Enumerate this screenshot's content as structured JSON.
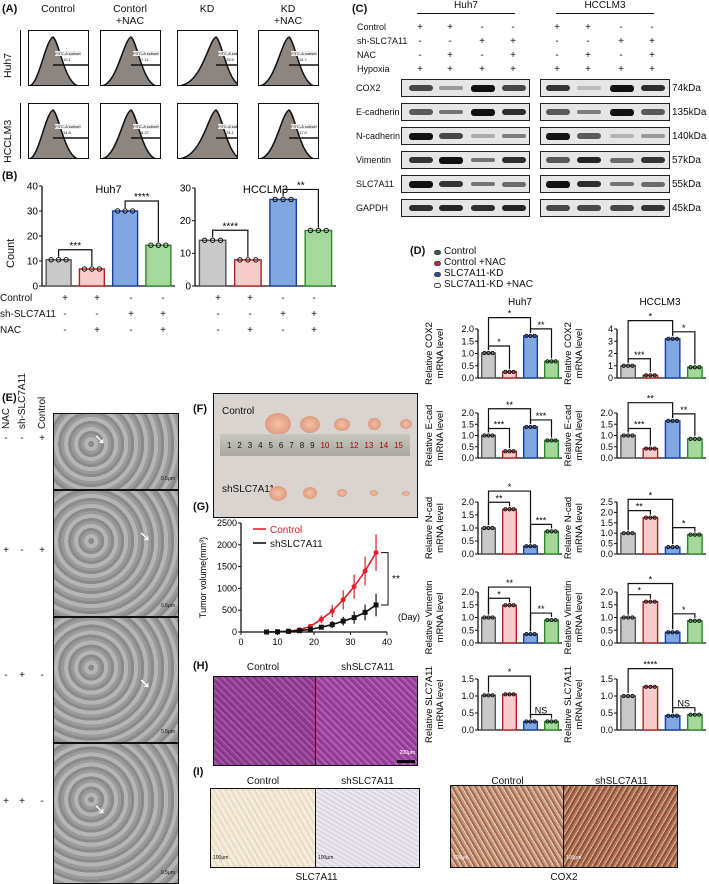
{
  "panels": {
    "A": "(A)",
    "B": "(B)",
    "C": "(C)",
    "D": "(D)",
    "E": "(E)",
    "F": "(F)",
    "G": "(G)",
    "H": "(H)",
    "I": "(I)"
  },
  "flow": {
    "columns": [
      "Control",
      "Contorl\n+NAC",
      "KD",
      "KD\n+NAC"
    ],
    "rows": [
      "Huh7",
      "HCCLM3"
    ],
    "gate_label": "FITC-A subset",
    "values": [
      [
        "10.1",
        "7.11",
        "29.5",
        "16.7"
      ],
      [
        "14.8",
        "8.27",
        "24.1",
        "17.0"
      ]
    ]
  },
  "colors": {
    "control": "#c9c9c9",
    "control_nac": "#f8cccc",
    "kd": "#7fa8e3",
    "kd_nac": "#a5d99c"
  },
  "count": {
    "ylabel": "Count",
    "charts": [
      {
        "title": "Huh7",
        "ylim": [
          0,
          40
        ],
        "ticks": [
          0,
          10,
          20,
          30,
          40
        ],
        "values": [
          10.5,
          6.8,
          30,
          16.3
        ],
        "sig": [
          {
            "pair": [
              0,
              1
            ],
            "label": "***"
          },
          {
            "pair": [
              2,
              3
            ],
            "label": "****"
          }
        ]
      },
      {
        "title": "HCCLM3",
        "ylim": [
          0,
          30
        ],
        "ticks": [
          0,
          10,
          20,
          30
        ],
        "values": [
          14,
          8,
          26.5,
          17
        ],
        "sig": [
          {
            "pair": [
              0,
              1
            ],
            "label": "****"
          },
          {
            "pair": [
              2,
              3
            ],
            "label": "**"
          }
        ]
      }
    ],
    "conditions": [
      {
        "label": "Control",
        "signs": [
          "+",
          "+",
          "-",
          "-"
        ]
      },
      {
        "label": "sh-SLC7A11",
        "signs": [
          "-",
          "-",
          "+",
          "+"
        ]
      },
      {
        "label": "NAC",
        "signs": [
          "-",
          "+",
          "-",
          "+"
        ]
      }
    ]
  },
  "western": {
    "cells": [
      "Huh7",
      "HCCLM3"
    ],
    "conditions": [
      {
        "label": "Control",
        "signs": [
          "+",
          "+",
          "-",
          "-"
        ]
      },
      {
        "label": "sh-SLC7A11",
        "signs": [
          "-",
          "-",
          "+",
          "+"
        ]
      },
      {
        "label": "NAC",
        "signs": [
          "-",
          "+",
          "-",
          "+"
        ]
      },
      {
        "label": "Hypoxia",
        "signs": [
          "+",
          "+",
          "+",
          "+"
        ]
      }
    ],
    "proteins": [
      {
        "name": "COX2",
        "kda": "74kDa",
        "huh7": [
          0.7,
          0.25,
          1,
          0.7
        ],
        "hcclm3": [
          0.8,
          0.05,
          1,
          0.85
        ]
      },
      {
        "name": "E-cadherin",
        "kda": "135kDa",
        "huh7": [
          0.6,
          0.45,
          1,
          0.85
        ],
        "hcclm3": [
          0.6,
          0.4,
          1,
          0.6
        ]
      },
      {
        "name": "N-cadherin",
        "kda": "140kDa",
        "huh7": [
          1,
          0.7,
          0.15,
          0.4
        ],
        "hcclm3": [
          1,
          0.6,
          0.1,
          0.25
        ]
      },
      {
        "name": "Vimentin",
        "kda": "57kDa",
        "huh7": [
          0.8,
          1,
          0.45,
          0.85
        ],
        "hcclm3": [
          0.6,
          0.9,
          0.5,
          0.8
        ]
      },
      {
        "name": "SLC7A11",
        "kda": "55kDa",
        "huh7": [
          1,
          0.8,
          0.45,
          0.5
        ],
        "hcclm3": [
          1,
          0.85,
          0.45,
          0.5
        ]
      },
      {
        "name": "GAPDH",
        "kda": "45kDa",
        "huh7": [
          0.85,
          0.9,
          0.85,
          0.9
        ],
        "hcclm3": [
          0.7,
          0.7,
          0.7,
          0.8
        ]
      }
    ]
  },
  "qpcr": {
    "legend": [
      "Control",
      "Control +NAC",
      "SLC7A11-KD",
      "SLC7A11-KD +NAC"
    ],
    "titles": [
      "Huh7",
      "HCCLM3"
    ],
    "genes": [
      {
        "ylabel": [
          "Relative COX2",
          "mRNA level"
        ],
        "charts": [
          {
            "ylim": [
              0,
              2
            ],
            "ticks": [
              "0.0",
              "0.5",
              "1.0",
              "1.5",
              "2.0"
            ],
            "values": [
              1.02,
              0.25,
              1.72,
              0.68
            ],
            "sig": [
              [
                "0",
                "1",
                "*"
              ],
              [
                "0",
                "2",
                "*"
              ],
              [
                "2",
                "3",
                "**"
              ]
            ]
          },
          {
            "ylim": [
              0,
              4
            ],
            "ticks": [
              "0",
              "1",
              "2",
              "3",
              "4"
            ],
            "values": [
              1.0,
              0.22,
              3.2,
              0.88
            ],
            "sig": [
              [
                "0",
                "1",
                "***"
              ],
              [
                "0",
                "2",
                "*"
              ],
              [
                "2",
                "3",
                "*"
              ]
            ]
          }
        ]
      },
      {
        "ylabel": [
          "Relative E-cad",
          "mRNA level"
        ],
        "charts": [
          {
            "ylim": [
              0,
              2
            ],
            "ticks": [
              "0.0",
              "0.5",
              "1.0",
              "1.5",
              "2.0"
            ],
            "values": [
              1.0,
              0.3,
              1.38,
              0.78
            ],
            "sig": [
              [
                "0",
                "1",
                "***"
              ],
              [
                "0",
                "2",
                "**"
              ],
              [
                "2",
                "3",
                "***"
              ]
            ]
          },
          {
            "ylim": [
              0,
              2
            ],
            "ticks": [
              "0.0",
              "0.5",
              "1.0",
              "1.5",
              "2.0"
            ],
            "values": [
              1.0,
              0.42,
              1.65,
              0.85
            ],
            "sig": [
              [
                "0",
                "1",
                "***"
              ],
              [
                "0",
                "2",
                "**"
              ],
              [
                "2",
                "3",
                "**"
              ]
            ]
          }
        ]
      },
      {
        "ylabel": [
          "Relative N-cad",
          "mRNA level"
        ],
        "charts": [
          {
            "ylim": [
              0,
              2
            ],
            "ticks": [
              "0.0",
              "0.5",
              "1.0",
              "1.5",
              "2.0"
            ],
            "values": [
              1.0,
              1.72,
              0.3,
              0.87
            ],
            "sig": [
              [
                "0",
                "1",
                "**"
              ],
              [
                "0",
                "2",
                "*"
              ],
              [
                "2",
                "3",
                "***"
              ]
            ]
          },
          {
            "ylim": [
              0,
              2.5
            ],
            "ticks": [
              "0.0",
              "0.5",
              "1.0",
              "1.5",
              "2.0",
              "2.5"
            ],
            "values": [
              1.0,
              1.75,
              0.33,
              0.93
            ],
            "sig": [
              [
                "0",
                "1",
                "**"
              ],
              [
                "0",
                "2",
                "*"
              ],
              [
                "2",
                "3",
                "*"
              ]
            ]
          }
        ]
      },
      {
        "ylabel": [
          "Relative Vimentin",
          "mRNA level"
        ],
        "charts": [
          {
            "ylim": [
              0,
              2
            ],
            "ticks": [
              "0.0",
              "0.5",
              "1.0",
              "1.5",
              "2.0"
            ],
            "values": [
              1.0,
              1.48,
              0.35,
              0.9
            ],
            "sig": [
              [
                "0",
                "1",
                "*"
              ],
              [
                "0",
                "2",
                "**"
              ],
              [
                "2",
                "3",
                "**"
              ]
            ]
          },
          {
            "ylim": [
              0,
              2
            ],
            "ticks": [
              "0.0",
              "0.5",
              "1.0",
              "1.5",
              "2.0"
            ],
            "values": [
              1.0,
              1.62,
              0.42,
              0.87
            ],
            "sig": [
              [
                "0",
                "1",
                "*"
              ],
              [
                "0",
                "2",
                "*"
              ],
              [
                "2",
                "3",
                "*"
              ]
            ]
          }
        ]
      },
      {
        "ylabel": [
          "Relative SLC7A11",
          "mRNA level"
        ],
        "charts": [
          {
            "ylim": [
              0,
              1.5
            ],
            "ticks": [
              "0.0",
              "0.5",
              "1.0",
              "1.5"
            ],
            "values": [
              1.02,
              1.05,
              0.25,
              0.25
            ],
            "sig": [
              [
                "0",
                "2",
                "*"
              ],
              [
                "2",
                "3",
                "NS"
              ]
            ]
          },
          {
            "ylim": [
              0,
              1.5
            ],
            "ticks": [
              "0.0",
              "0.5",
              "1.0",
              "1.5"
            ],
            "values": [
              1.0,
              1.27,
              0.42,
              0.45
            ],
            "sig": [
              [
                "0",
                "2",
                "****"
              ],
              [
                "2",
                "3",
                "NS"
              ]
            ]
          }
        ]
      }
    ]
  },
  "tem": {
    "columns": [
      "NAC",
      "sh-SLC7A11",
      "Control"
    ],
    "rows": [
      [
        "-",
        "-",
        "+"
      ],
      [
        "+",
        "-",
        "+"
      ],
      [
        "-",
        "+",
        "-"
      ],
      [
        "+",
        "+",
        "-"
      ]
    ],
    "scale": "0.5μm"
  },
  "xenograft": {
    "top_label": "Control",
    "bottom_label": "shSLC7A11",
    "ruler": [
      "1",
      "2",
      "3",
      "4",
      "5",
      "6",
      "7",
      "8",
      "9",
      "10",
      "11",
      "12",
      "13",
      "14",
      "15"
    ]
  },
  "chart_data": {
    "type": "line",
    "xlabel": "(Day)",
    "ylabel": "Tumor volume(mm³)",
    "xlim": [
      0,
      40
    ],
    "ylim": [
      0,
      2500
    ],
    "xticks": [
      0,
      10,
      20,
      30,
      40
    ],
    "yticks": [
      0,
      500,
      1000,
      1500,
      2000,
      2500
    ],
    "legend": "top-left",
    "annotation": "**",
    "x": [
      7,
      10,
      13,
      16,
      19,
      22,
      25,
      28,
      31,
      34,
      37
    ],
    "series": [
      {
        "name": "Control",
        "color": "#e0202a",
        "values": [
          0,
          5,
          20,
          50,
          130,
          290,
          480,
          740,
          1040,
          1400,
          1820
        ],
        "err": [
          0,
          5,
          10,
          20,
          40,
          90,
          140,
          220,
          280,
          330,
          420
        ]
      },
      {
        "name": "shSLC7A11",
        "color": "#111111",
        "values": [
          0,
          5,
          15,
          30,
          60,
          110,
          170,
          250,
          330,
          450,
          620
        ],
        "err": [
          0,
          5,
          8,
          15,
          25,
          50,
          80,
          100,
          140,
          180,
          260
        ]
      }
    ]
  },
  "he": {
    "labels": [
      "Control",
      "shSLC7A11"
    ],
    "scale": "200μm"
  },
  "ihc": {
    "labels": [
      "Control",
      "shSLC7A11"
    ],
    "scale": "100μm",
    "markers": [
      "SLC7A11",
      "COX2"
    ]
  }
}
